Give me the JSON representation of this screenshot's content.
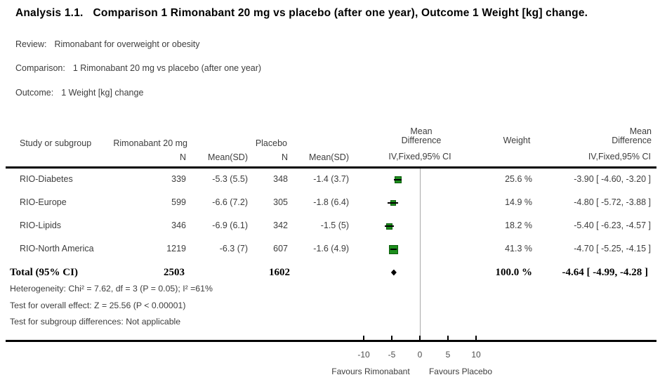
{
  "title": {
    "prefix": "Analysis 1.1.",
    "text": "Comparison 1 Rimonabant 20 mg vs placebo (after one year), Outcome 1 Weight [kg] change."
  },
  "meta": {
    "review_label": "Review:",
    "review": "Rimonabant for overweight or obesity",
    "comparison_label": "Comparison:",
    "comparison": "1 Rimonabant 20 mg vs placebo (after one year)",
    "outcome_label": "Outcome:",
    "outcome": "1 Weight [kg] change"
  },
  "table": {
    "headers": {
      "study": "Study or subgroup",
      "group1": "Rimonabant 20 mg",
      "group2": "Placebo",
      "n1": "N",
      "mean1": "Mean(SD)",
      "n2": "N",
      "mean2": "Mean(SD)",
      "effect_line1": "Mean",
      "effect_line2": "Difference",
      "effect_method": "IV,Fixed,95% CI",
      "weight": "Weight",
      "effect_right_line1": "Mean",
      "effect_right_line2": "Difference",
      "effect_right_method": "IV,Fixed,95% CI"
    },
    "rows": [
      {
        "study": "RIO-Diabetes",
        "n1": "339",
        "mean1": "-5.3 (5.5)",
        "n2": "348",
        "mean2": "-1.4 (3.7)",
        "weight": "25.6 %",
        "ci_text": "-3.90 [ -4.60, -3.20 ]",
        "md": -3.9,
        "ci_low": -4.6,
        "ci_high": -3.2,
        "weight_val": 25.6
      },
      {
        "study": "RIO-Europe",
        "n1": "599",
        "mean1": "-6.6 (7.2)",
        "n2": "305",
        "mean2": "-1.8 (6.4)",
        "weight": "14.9 %",
        "ci_text": "-4.80 [ -5.72, -3.88 ]",
        "md": -4.8,
        "ci_low": -5.72,
        "ci_high": -3.88,
        "weight_val": 14.9
      },
      {
        "study": "RIO-Lipids",
        "n1": "346",
        "mean1": "-6.9 (6.1)",
        "n2": "342",
        "mean2": "-1.5 (5)",
        "weight": "18.2 %",
        "ci_text": "-5.40 [ -6.23, -4.57 ]",
        "md": -5.4,
        "ci_low": -6.23,
        "ci_high": -4.57,
        "weight_val": 18.2
      },
      {
        "study": "RIO-North America",
        "n1": "1219",
        "mean1": "-6.3 (7)",
        "n2": "607",
        "mean2": "-1.6 (4.9)",
        "weight": "41.3 %",
        "ci_text": "-4.70 [ -5.25, -4.15 ]",
        "md": -4.7,
        "ci_low": -5.25,
        "ci_high": -4.15,
        "weight_val": 41.3
      }
    ],
    "total": {
      "label": "Total (95% CI)",
      "n1": "2503",
      "n2": "1602",
      "weight": "100.0 %",
      "ci_text": "-4.64 [ -4.99, -4.28 ]",
      "md": -4.64,
      "ci_low": -4.99,
      "ci_high": -4.28
    },
    "footnotes": [
      "Heterogeneity: Chi² = 7.62, df = 3 (P = 0.05); I² =61%",
      "Test for overall effect: Z = 25.56 (P < 0.00001)",
      "Test for subgroup differences: Not applicable"
    ]
  },
  "axis": {
    "ticks": [
      "-10",
      "-5",
      "0",
      "5",
      "10"
    ],
    "tick_values": [
      -10,
      -5,
      0,
      5,
      10
    ],
    "favours_left": "Favours Rimonabant",
    "favours_right": "Favours Placebo"
  },
  "colors": {
    "marker_fill": "#1d8e1d",
    "marker_border": "#0c5c0c",
    "diamond": "#000000",
    "zero_line": "#a9a9a9",
    "rule": "#000000"
  },
  "chart_data": {
    "type": "scatter",
    "subtype": "forest-plot",
    "title": "Analysis 1.1. Comparison 1 Rimonabant 20 mg vs placebo (after one year), Outcome 1 Weight [kg] change.",
    "effect_measure": "Mean Difference, IV, Fixed, 95% CI",
    "x_ticks": [
      -10,
      -5,
      0,
      5,
      10
    ],
    "xlabel_left": "Favours Rimonabant",
    "xlabel_right": "Favours Placebo",
    "studies": [
      {
        "name": "RIO-Diabetes",
        "treatment_n": 339,
        "treatment_mean_sd": "-5.3 (5.5)",
        "placebo_n": 348,
        "placebo_mean_sd": "-1.4 (3.7)",
        "weight_pct": 25.6,
        "md": -3.9,
        "ci_low": -4.6,
        "ci_high": -3.2
      },
      {
        "name": "RIO-Europe",
        "treatment_n": 599,
        "treatment_mean_sd": "-6.6 (7.2)",
        "placebo_n": 305,
        "placebo_mean_sd": "-1.8 (6.4)",
        "weight_pct": 14.9,
        "md": -4.8,
        "ci_low": -5.72,
        "ci_high": -3.88
      },
      {
        "name": "RIO-Lipids",
        "treatment_n": 346,
        "treatment_mean_sd": "-6.9 (6.1)",
        "placebo_n": 342,
        "placebo_mean_sd": "-1.5 (5)",
        "weight_pct": 18.2,
        "md": -5.4,
        "ci_low": -6.23,
        "ci_high": -4.57
      },
      {
        "name": "RIO-North America",
        "treatment_n": 1219,
        "treatment_mean_sd": "-6.3 (7)",
        "placebo_n": 607,
        "placebo_mean_sd": "-1.6 (4.9)",
        "weight_pct": 41.3,
        "md": -4.7,
        "ci_low": -5.25,
        "ci_high": -4.15
      }
    ],
    "total": {
      "name": "Total (95% CI)",
      "treatment_n": 2503,
      "placebo_n": 1602,
      "weight_pct": 100.0,
      "md": -4.64,
      "ci_low": -4.99,
      "ci_high": -4.28
    },
    "heterogeneity": "Chi² = 7.62, df = 3 (P = 0.05); I² =61%",
    "overall_effect": "Z = 25.56 (P < 0.00001)",
    "subgroup_differences": "Not applicable"
  }
}
